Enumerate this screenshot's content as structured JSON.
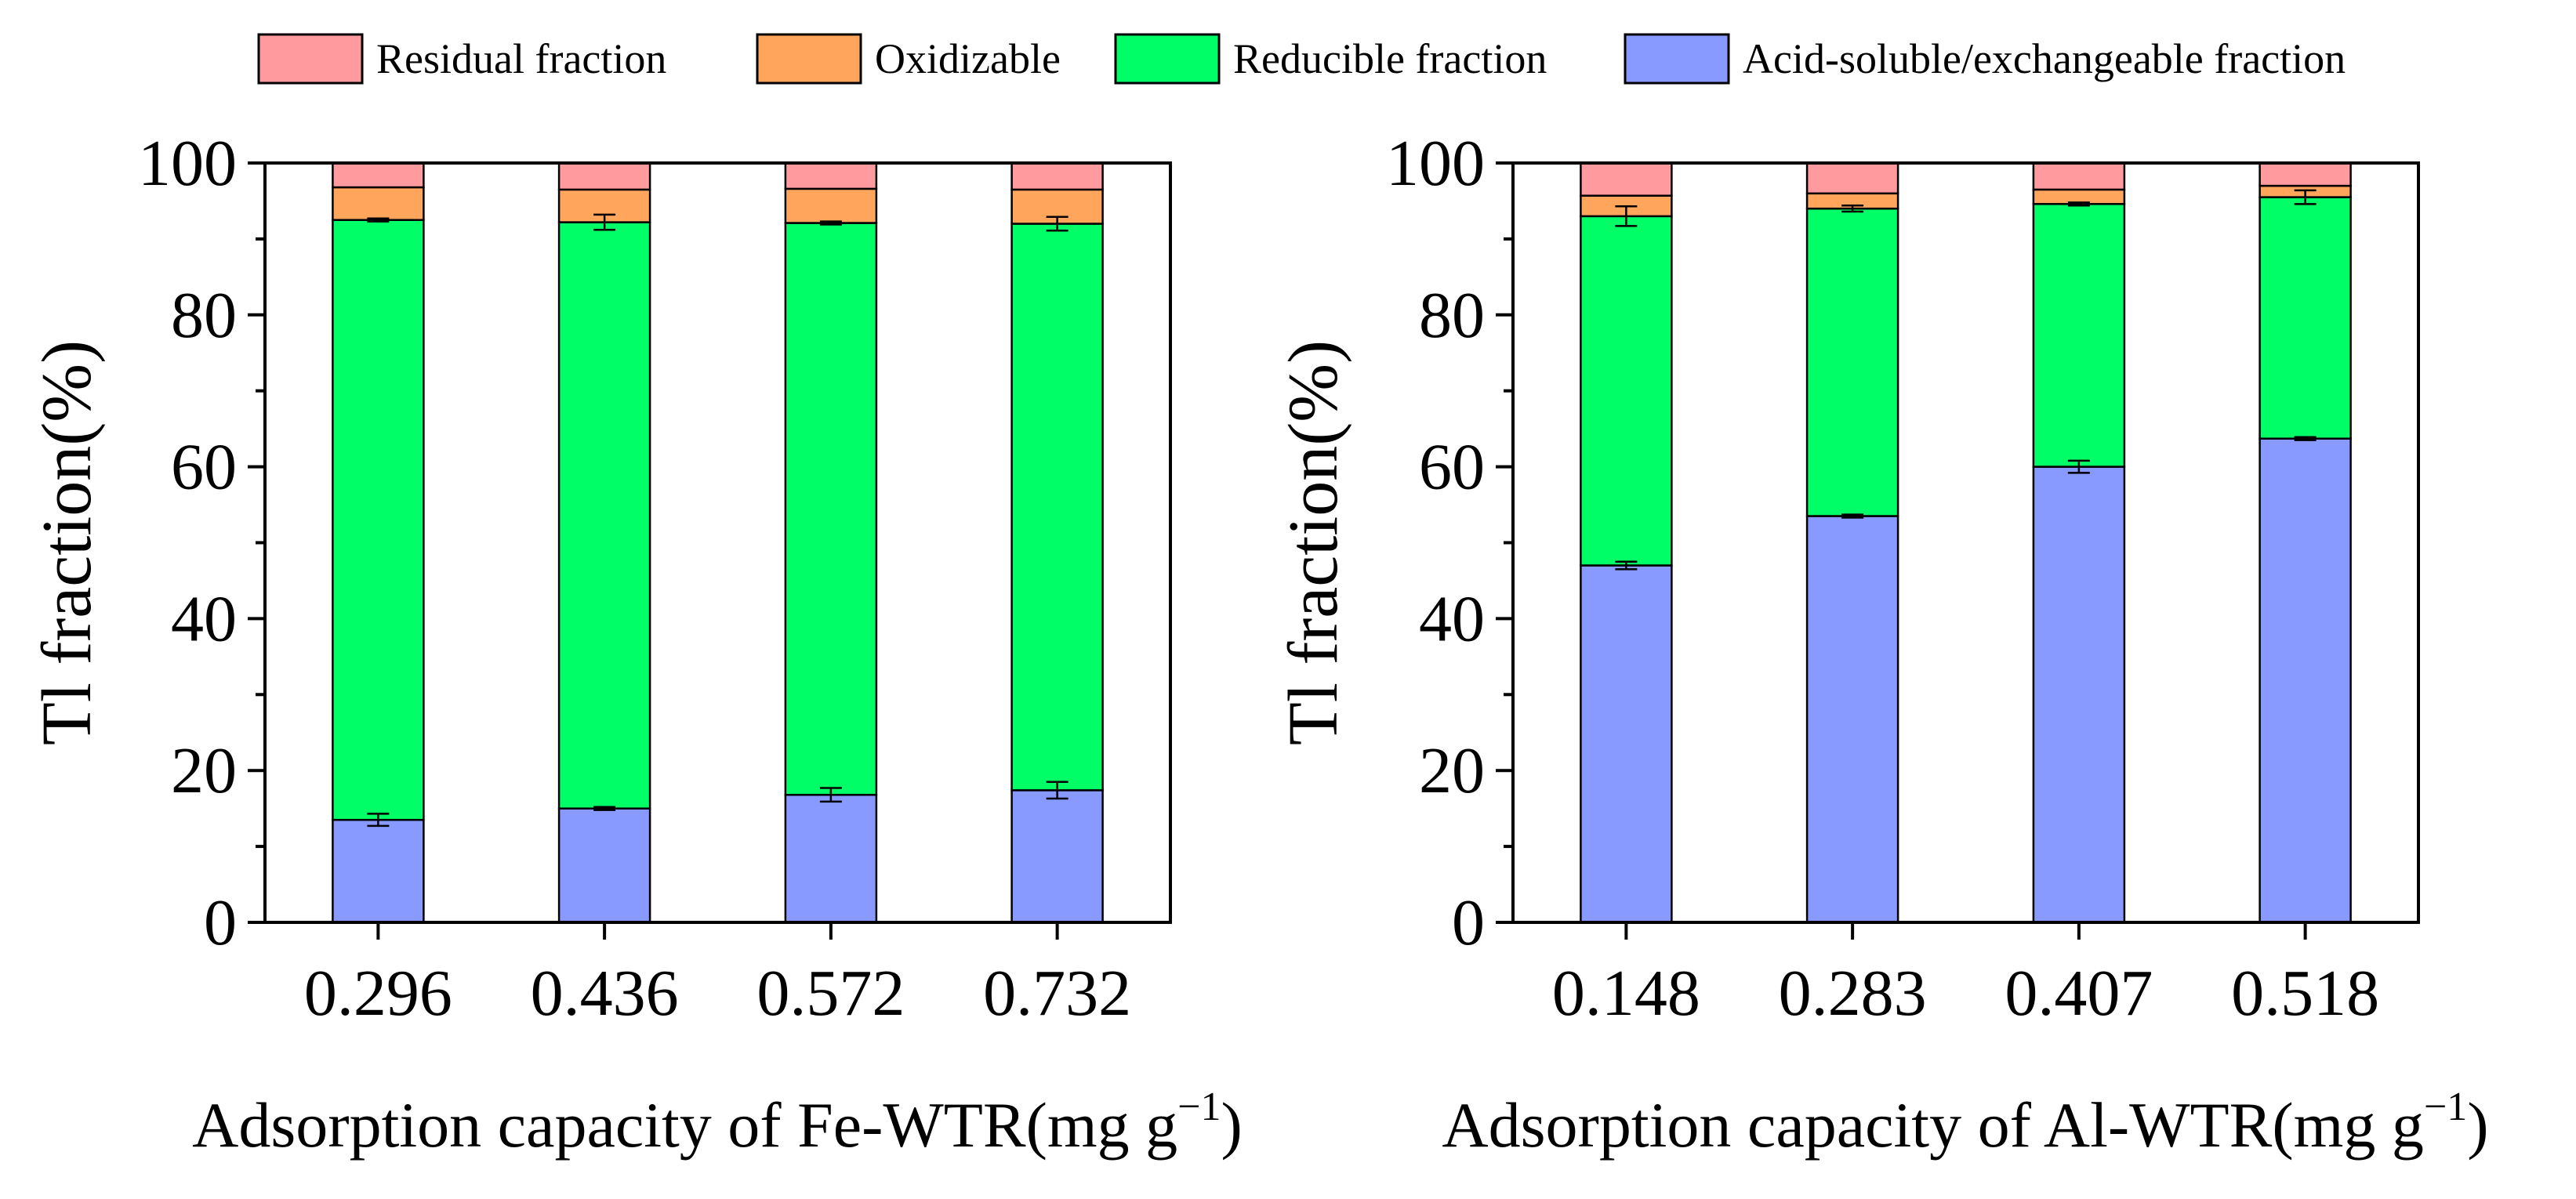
{
  "colors": {
    "residual": "#FF9A9E",
    "oxidizable": "#FFA55C",
    "reducible": "#00FF66",
    "acid": "#8899FF",
    "axis": "#000000"
  },
  "legend": [
    {
      "key": "residual",
      "label": "Residual fraction"
    },
    {
      "key": "oxidizable",
      "label": "Oxidizable"
    },
    {
      "key": "reducible",
      "label": "Reducible fraction"
    },
    {
      "key": "acid",
      "label": "Acid-soluble/exchangeable fraction"
    }
  ],
  "chart_data": [
    {
      "type": "bar",
      "stacked": true,
      "title": "",
      "categories": [
        "0.296",
        "0.436",
        "0.572",
        "0.732"
      ],
      "xlabel_main": "Adsorption capacity of Fe-WTR(mg g",
      "xlabel_sup": "−1",
      "xlabel_close": ")",
      "ylabel": "Tl fraction(%)",
      "ylim": [
        0,
        100
      ],
      "yticks": [
        "0",
        "20",
        "40",
        "60",
        "80",
        "100"
      ],
      "series": [
        {
          "name": "Acid-soluble/exchangeable fraction",
          "key": "acid",
          "values": [
            13.5,
            15.0,
            16.8,
            17.4
          ],
          "errors": [
            0.8,
            0.2,
            0.9,
            1.1
          ]
        },
        {
          "name": "Reducible fraction",
          "key": "reducible",
          "values": [
            79.0,
            77.2,
            75.3,
            74.6
          ],
          "errors": [
            0.2,
            1.0,
            0.2,
            0.9
          ]
        },
        {
          "name": "Oxidizable",
          "key": "oxidizable",
          "values": [
            4.3,
            4.3,
            4.5,
            4.5
          ],
          "errors": [
            0,
            0,
            0,
            0
          ]
        },
        {
          "name": "Residual fraction",
          "key": "residual",
          "values": [
            3.2,
            3.5,
            3.4,
            3.5
          ],
          "errors": [
            0,
            0,
            0,
            0
          ]
        }
      ]
    },
    {
      "type": "bar",
      "stacked": true,
      "title": "",
      "categories": [
        "0.148",
        "0.283",
        "0.407",
        "0.518"
      ],
      "xlabel_main": "Adsorption capacity of Al-WTR(mg g",
      "xlabel_sup": "−1",
      "xlabel_close": ")",
      "ylabel": "Tl fraction(%)",
      "ylim": [
        0,
        100
      ],
      "yticks": [
        "0",
        "20",
        "40",
        "60",
        "80",
        "100"
      ],
      "series": [
        {
          "name": "Acid-soluble/exchangeable fraction",
          "key": "acid",
          "values": [
            47.0,
            53.5,
            60.0,
            63.7
          ],
          "errors": [
            0.5,
            0.2,
            0.8,
            0.2
          ]
        },
        {
          "name": "Reducible fraction",
          "key": "reducible",
          "values": [
            46.0,
            40.5,
            34.6,
            31.8
          ],
          "errors": [
            1.3,
            0.4,
            0.2,
            0.9
          ]
        },
        {
          "name": "Oxidizable",
          "key": "oxidizable",
          "values": [
            2.7,
            2.0,
            1.9,
            1.5
          ],
          "errors": [
            0,
            0,
            0,
            0
          ]
        },
        {
          "name": "Residual fraction",
          "key": "residual",
          "values": [
            4.3,
            4.0,
            3.5,
            3.0
          ],
          "errors": [
            0,
            0,
            0,
            0
          ]
        }
      ]
    }
  ]
}
